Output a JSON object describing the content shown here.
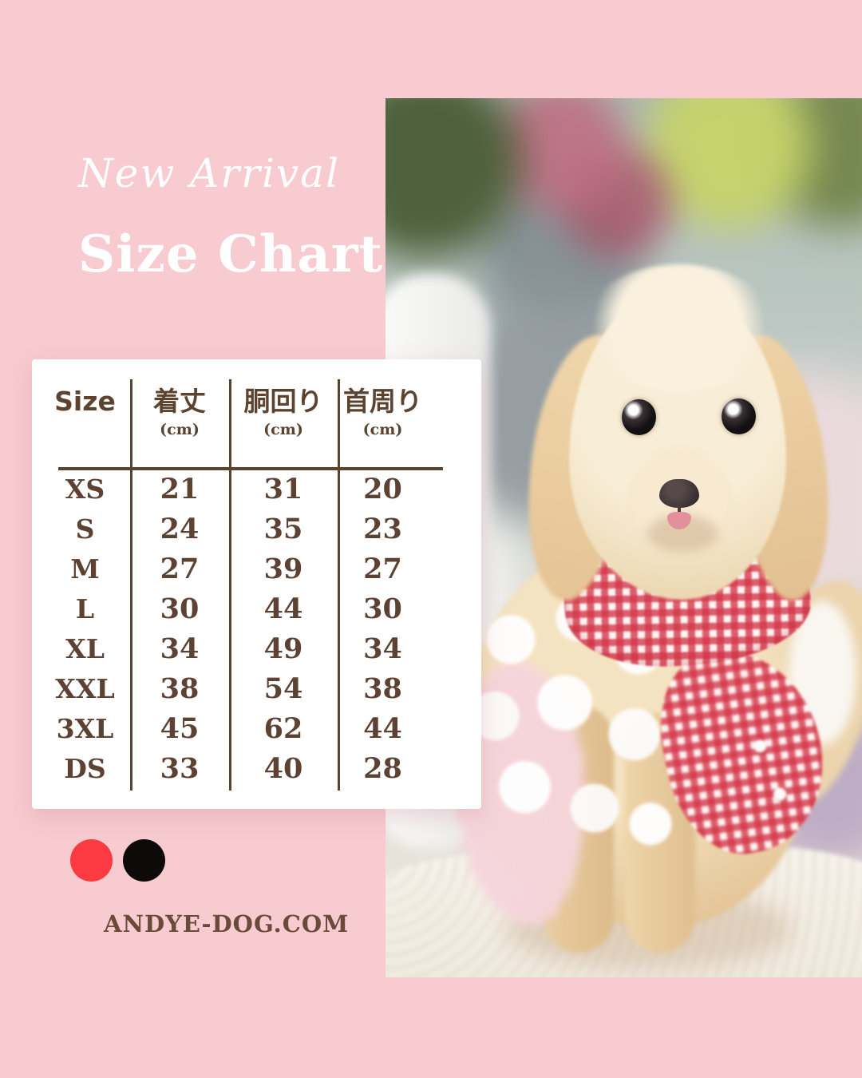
{
  "header": {
    "eyebrow": "New Arrival",
    "title": "Size Chart"
  },
  "size_table": {
    "columns": [
      {
        "key": "size",
        "label": "Size",
        "unit": ""
      },
      {
        "key": "length",
        "label": "着丈",
        "unit": "(cm)"
      },
      {
        "key": "girth",
        "label": "胴回り",
        "unit": "(cm)"
      },
      {
        "key": "neck",
        "label": "首周り",
        "unit": "(cm)"
      }
    ],
    "rows": [
      {
        "size": "XS",
        "length": "21",
        "girth": "31",
        "neck": "20"
      },
      {
        "size": "S",
        "length": "24",
        "girth": "35",
        "neck": "23"
      },
      {
        "size": "M",
        "length": "27",
        "girth": "39",
        "neck": "27"
      },
      {
        "size": "L",
        "length": "30",
        "girth": "44",
        "neck": "30"
      },
      {
        "size": "XL",
        "length": "34",
        "girth": "49",
        "neck": "34"
      },
      {
        "size": "XXL",
        "length": "38",
        "girth": "54",
        "neck": "38"
      },
      {
        "size": "3XL",
        "length": "45",
        "girth": "62",
        "neck": "44"
      },
      {
        "size": "DS",
        "length": "33",
        "girth": "40",
        "neck": "28"
      }
    ]
  },
  "color_options": [
    {
      "name": "red",
      "hex": "#fb3a41"
    },
    {
      "name": "black",
      "hex": "#0e0a0a"
    }
  ],
  "footer": {
    "website": "ANDYE-DOG.COM"
  },
  "photo": {
    "description": "Toy poodle in a red gingham dress with white lace trim, sitting on a white knit blanket in front of blurred garden flowers"
  },
  "theme": {
    "background_pink": "#f7cbd0",
    "text_brown": "#5c4330",
    "card_white": "#ffffff",
    "title_white": "#ffffff"
  }
}
